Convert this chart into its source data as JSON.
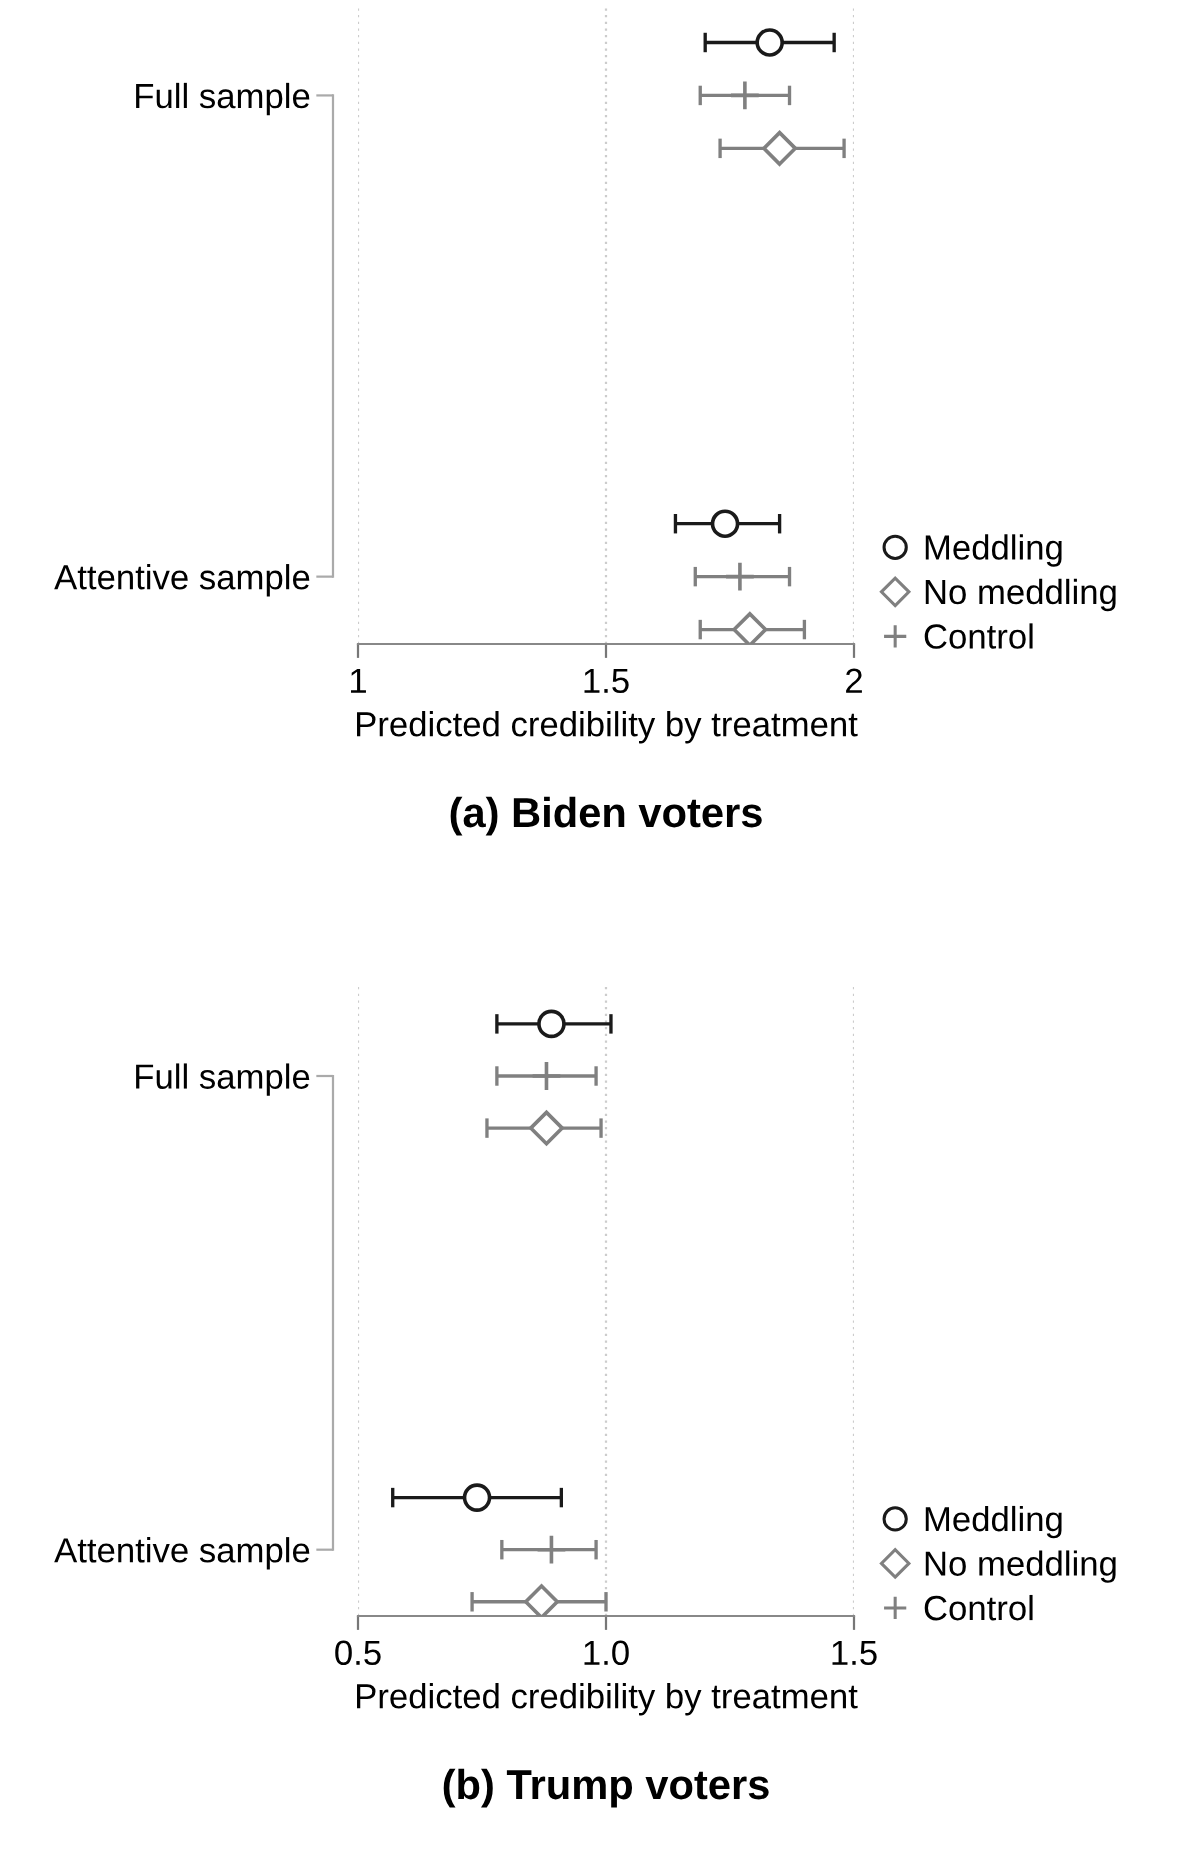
{
  "chart_data": [
    {
      "type": "scatter",
      "orientation": "horizontal",
      "title": "(a) Biden voters",
      "xlabel": "Predicted credibility by treatment",
      "categories": [
        "Full sample",
        "Attentive sample"
      ],
      "xlim": [
        1,
        2
      ],
      "xticks": [
        1,
        1.5,
        2
      ],
      "grid": "x",
      "legend": "bottom right",
      "series": [
        {
          "name": "Meddling",
          "color": "#1a1a1a",
          "marker": "circle",
          "values": [
            1.83,
            1.74
          ],
          "errors": [
            [
              1.7,
              1.96
            ],
            [
              1.64,
              1.85
            ]
          ]
        },
        {
          "name": "Control",
          "color": "#808080",
          "marker": "cross",
          "values": [
            1.78,
            1.77
          ],
          "errors": [
            [
              1.69,
              1.87
            ],
            [
              1.68,
              1.87
            ]
          ]
        },
        {
          "name": "No meddling",
          "color": "#808080",
          "marker": "diamond",
          "values": [
            1.85,
            1.79
          ],
          "errors": [
            [
              1.73,
              1.98
            ],
            [
              1.69,
              1.9
            ]
          ]
        }
      ]
    },
    {
      "type": "scatter",
      "orientation": "horizontal",
      "title": "(b) Trump voters",
      "xlabel": "Predicted credibility by treatment",
      "categories": [
        "Full sample",
        "Attentive sample"
      ],
      "xlim": [
        0.5,
        1.5
      ],
      "xticks": [
        0.5,
        {
          "value": 1,
          "label": "1.0"
        },
        1.5
      ],
      "grid": "x",
      "legend": "bottom right",
      "series": [
        {
          "name": "Meddling",
          "color": "#1a1a1a",
          "marker": "circle",
          "values": [
            0.89,
            0.74
          ],
          "errors": [
            [
              0.78,
              1.01
            ],
            [
              0.57,
              0.91
            ]
          ]
        },
        {
          "name": "Control",
          "color": "#808080",
          "marker": "cross",
          "values": [
            0.88,
            0.89
          ],
          "errors": [
            [
              0.78,
              0.98
            ],
            [
              0.79,
              0.98
            ]
          ]
        },
        {
          "name": "No meddling",
          "color": "#808080",
          "marker": "diamond",
          "values": [
            0.88,
            0.87
          ],
          "errors": [
            [
              0.76,
              0.99
            ],
            [
              0.73,
              1.0
            ]
          ]
        }
      ]
    }
  ]
}
